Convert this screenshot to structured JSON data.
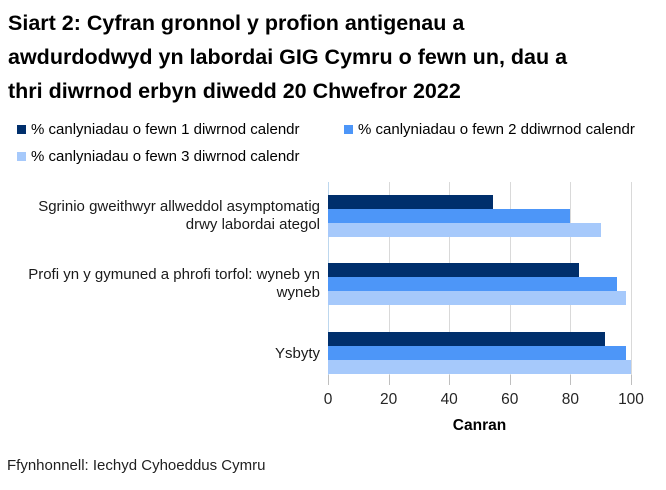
{
  "header": {
    "title_lines": [
      "Siart 2: Cyfran gronnol y profion antigenau a",
      "awdurdodwyd yn labordai GIG Cymru o fewn un, dau a",
      "thri diwrnod erbyn diwedd 20 Chwefror 2022"
    ]
  },
  "chart_data": {
    "type": "bar",
    "orientation": "horizontal",
    "title": "Siart 2: Cyfran gronnol y profion antigenau a awdurdodwyd yn labordai GIG Cymru o fewn un, dau a thri diwrnod erbyn diwedd 20 Chwefror 2022",
    "categories": [
      "Sgrinio gweithwyr allweddol asymptomatig drwy labordai ategol",
      "Profi yn y gymuned a phrofi torfol: wyneb yn wyneb",
      "Ysbyty"
    ],
    "series": [
      {
        "name": "% canlyniadau o fewn 1 diwrnod calendr",
        "color": "#002F6C",
        "values": [
          54.5,
          83.0,
          91.5
        ]
      },
      {
        "name": "% canlyniadau o fewn 2 ddiwrnod calendr",
        "color": "#4D96F8",
        "values": [
          80.0,
          95.5,
          98.5
        ]
      },
      {
        "name": "% canlyniadau o fewn 3 diwrnod calendr",
        "color": "#A6C9FB",
        "values": [
          90.0,
          98.5,
          99.9
        ]
      }
    ],
    "xlabel": "Canran",
    "xticks": [
      0,
      20,
      40,
      60,
      80,
      100
    ],
    "xlim": [
      0,
      100
    ],
    "grid": "vertical",
    "legend_position": "top"
  },
  "style": {
    "gridline_color": "#D9D9D9",
    "zero_line_color": "#BDD7EE",
    "tickmark_color": "#BFBFBF"
  },
  "footer": {
    "source": "Ffynhonnell: Iechyd Cyhoeddus Cymru"
  }
}
